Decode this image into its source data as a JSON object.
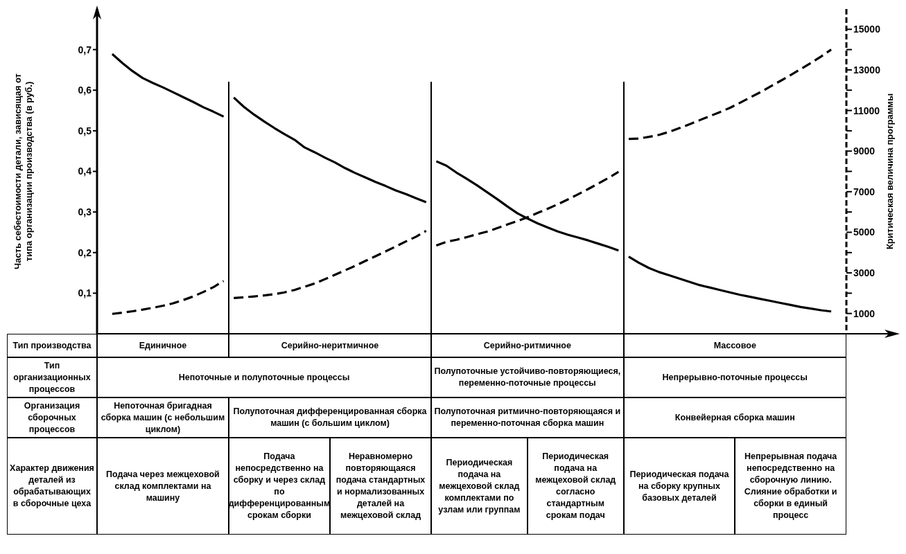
{
  "chart_data": {
    "type": "line",
    "ylabel": "Часть себестоимости детали, зависящая от типа организации производства (в руб.)",
    "y2label": "Критическая величина программы",
    "categories": [
      null,
      null,
      null,
      null,
      null,
      null,
      null,
      null,
      null,
      null,
      null,
      null,
      null,
      null,
      null,
      null,
      null,
      null,
      null,
      null,
      null,
      null,
      null,
      null,
      null,
      null,
      null,
      null,
      null,
      null,
      null,
      null,
      null,
      null,
      null,
      null,
      null,
      null,
      null,
      null,
      null,
      null,
      null,
      null,
      null,
      null,
      null,
      null,
      null,
      null,
      null,
      null,
      null,
      null,
      null,
      null,
      null,
      null,
      null,
      null,
      null,
      null,
      null,
      null,
      null,
      null,
      null,
      null,
      null,
      null,
      null,
      null,
      null,
      null
    ],
    "tick_labels": "y",
    "ylim": [
      0,
      0.8
    ],
    "yticks": [
      {
        "value": 0.1,
        "label": "0,1"
      },
      {
        "value": 0.2,
        "label": "0,2"
      },
      {
        "value": 0.3,
        "label": "0,3"
      },
      {
        "value": 0.4,
        "label": "0,4"
      },
      {
        "value": 0.5,
        "label": "0,5"
      },
      {
        "value": 0.6,
        "label": "0,6"
      },
      {
        "value": 0.7,
        "label": "0,7"
      }
    ],
    "y2lim": [
      0,
      16000
    ],
    "y2ticks": [
      1000,
      {
        "value": 2000,
        "label": null
      },
      3000,
      {
        "value": 4000,
        "label": null
      },
      5000,
      {
        "value": 6000,
        "label": null
      },
      7000,
      {
        "value": 8000,
        "label": null
      },
      9000,
      {
        "value": 10000,
        "label": null
      },
      11000,
      {
        "value": 12000,
        "label": null
      },
      13000,
      {
        "value": 14000,
        "label": null
      },
      15000
    ],
    "marker": "none",
    "series": [
      {
        "color": "#000000",
        "line_style": "solid",
        "values": [
          null,
          0.689,
          0.667,
          0.647,
          0.63,
          0.618,
          0.607,
          0.595,
          0.583,
          0.571,
          0.558,
          0.547,
          0.535,
          null,
          null,
          null,
          null,
          null,
          null,
          null,
          null,
          null,
          null,
          null,
          null,
          null,
          null,
          null,
          null,
          null,
          null,
          null,
          null,
          null,
          null,
          null,
          null,
          null,
          null,
          null,
          null,
          null,
          null,
          null,
          null,
          null,
          null,
          null,
          null,
          null,
          null,
          null,
          null,
          null,
          null,
          null,
          null,
          null,
          null,
          null,
          null,
          null,
          null,
          null,
          null,
          null,
          null,
          null,
          null,
          null,
          null,
          null,
          null,
          null
        ]
      },
      {
        "color": "#000000",
        "line_style": "solid",
        "values": [
          null,
          null,
          null,
          null,
          null,
          null,
          null,
          null,
          null,
          null,
          null,
          null,
          null,
          0.582,
          0.559,
          0.54,
          0.523,
          0.507,
          0.492,
          0.478,
          0.459,
          0.447,
          0.434,
          0.422,
          0.408,
          0.396,
          0.385,
          0.374,
          0.364,
          0.353,
          0.344,
          0.334,
          0.324,
          null,
          null,
          null,
          null,
          null,
          null,
          null,
          null,
          null,
          null,
          null,
          null,
          null,
          null,
          null,
          null,
          null,
          null,
          null,
          null,
          null,
          null,
          null,
          null,
          null,
          null,
          null,
          null,
          null,
          null,
          null,
          null,
          null,
          null,
          null,
          null,
          null,
          null,
          null,
          null,
          null
        ]
      },
      {
        "color": "#000000",
        "line_style": "solid",
        "values": [
          null,
          null,
          null,
          null,
          null,
          null,
          null,
          null,
          null,
          null,
          null,
          null,
          null,
          null,
          null,
          null,
          null,
          null,
          null,
          null,
          null,
          null,
          null,
          null,
          null,
          null,
          null,
          null,
          null,
          null,
          null,
          null,
          null,
          0.425,
          0.414,
          0.397,
          0.382,
          0.366,
          0.349,
          0.332,
          0.314,
          0.297,
          0.284,
          0.272,
          0.262,
          0.252,
          0.244,
          0.237,
          0.23,
          0.222,
          0.214,
          0.205,
          null,
          null,
          null,
          null,
          null,
          null,
          null,
          null,
          null,
          null,
          null,
          null,
          null,
          null,
          null,
          null,
          null,
          null,
          null,
          null,
          null,
          null
        ]
      },
      {
        "color": "#000000",
        "line_style": "solid",
        "values": [
          null,
          null,
          null,
          null,
          null,
          null,
          null,
          null,
          null,
          null,
          null,
          null,
          null,
          null,
          null,
          null,
          null,
          null,
          null,
          null,
          null,
          null,
          null,
          null,
          null,
          null,
          null,
          null,
          null,
          null,
          null,
          null,
          null,
          null,
          null,
          null,
          null,
          null,
          null,
          null,
          null,
          null,
          null,
          null,
          null,
          null,
          null,
          null,
          null,
          null,
          null,
          null,
          0.19,
          0.175,
          0.162,
          0.152,
          0.144,
          0.136,
          0.128,
          0.12,
          0.114,
          0.108,
          0.102,
          0.096,
          0.091,
          0.086,
          0.081,
          0.076,
          0.071,
          0.066,
          0.062,
          0.058,
          0.055,
          null
        ]
      },
      {
        "color": "#000000",
        "line_style": "dashed",
        "axis": "y2",
        "values": [
          null,
          980,
          1040,
          1110,
          1190,
          1280,
          1380,
          1500,
          1660,
          1840,
          2060,
          2300,
          2600,
          null,
          null,
          null,
          null,
          null,
          null,
          null,
          null,
          null,
          null,
          null,
          null,
          null,
          null,
          null,
          null,
          null,
          null,
          null,
          null,
          null,
          null,
          null,
          null,
          null,
          null,
          null,
          null,
          null,
          null,
          null,
          null,
          null,
          null,
          null,
          null,
          null,
          null,
          null,
          null,
          null,
          null,
          null,
          null,
          null,
          null,
          null,
          null,
          null,
          null,
          null,
          null,
          null,
          null,
          null,
          null,
          null,
          null,
          null,
          null,
          null
        ]
      },
      {
        "color": "#000000",
        "line_style": "dashed",
        "axis": "y2",
        "values": [
          null,
          null,
          null,
          null,
          null,
          null,
          null,
          null,
          null,
          null,
          null,
          null,
          null,
          1760,
          1800,
          1840,
          1890,
          1950,
          2040,
          2160,
          2320,
          2480,
          2690,
          2910,
          3130,
          3350,
          3590,
          3820,
          4060,
          4300,
          4550,
          4780,
          5070,
          null,
          null,
          null,
          null,
          null,
          null,
          null,
          null,
          null,
          null,
          null,
          null,
          null,
          null,
          null,
          null,
          null,
          null,
          null,
          null,
          null,
          null,
          null,
          null,
          null,
          null,
          null,
          null,
          null,
          null,
          null,
          null,
          null,
          null,
          null,
          null,
          null,
          null,
          null,
          null,
          null
        ]
      },
      {
        "color": "#000000",
        "line_style": "dashed",
        "axis": "y2",
        "values": [
          null,
          null,
          null,
          null,
          null,
          null,
          null,
          null,
          null,
          null,
          null,
          null,
          null,
          null,
          null,
          null,
          null,
          null,
          null,
          null,
          null,
          null,
          null,
          null,
          null,
          null,
          null,
          null,
          null,
          null,
          null,
          null,
          null,
          4350,
          4530,
          4630,
          4760,
          4900,
          5030,
          5200,
          5380,
          5550,
          5740,
          5950,
          6160,
          6380,
          6620,
          6870,
          7130,
          7400,
          7680,
          7980,
          null,
          null,
          null,
          null,
          null,
          null,
          null,
          null,
          null,
          null,
          null,
          null,
          null,
          null,
          null,
          null,
          null,
          null,
          null,
          null,
          null,
          null
        ]
      },
      {
        "color": "#000000",
        "line_style": "dashed",
        "axis": "y2",
        "values": [
          null,
          null,
          null,
          null,
          null,
          null,
          null,
          null,
          null,
          null,
          null,
          null,
          null,
          null,
          null,
          null,
          null,
          null,
          null,
          null,
          null,
          null,
          null,
          null,
          null,
          null,
          null,
          null,
          null,
          null,
          null,
          null,
          null,
          null,
          null,
          null,
          null,
          null,
          null,
          null,
          null,
          null,
          null,
          null,
          null,
          null,
          null,
          null,
          null,
          null,
          null,
          null,
          9600,
          9620,
          9700,
          9800,
          9950,
          10130,
          10320,
          10520,
          10720,
          10920,
          11130,
          11380,
          11640,
          11900,
          12180,
          12460,
          12750,
          13040,
          13340,
          13660,
          14000,
          null
        ]
      }
    ],
    "annotations": [
      "Тип производства",
      "Единичное",
      "Серийно-неритмичное",
      "Серийно-ритмичное",
      "Массовое",
      "Тип организационных процессов",
      "Непоточные и полупоточные процессы",
      "Полупоточные устойчиво-повторяющиеся, переменно-поточные процессы",
      "Непрерывно-поточные процессы",
      "Организация сборочных процессов",
      "Непоточная бригадная сборка машин (с небольшим циклом)",
      "Полупоточная дифференцированная сборка машин (с большим циклом)",
      "Полупоточная ритмично-повторяющаяся и переменно-поточная сборка машин",
      "Конвейерная сборка машин",
      "Характер движения деталей из обрабатывающих в сборочные цеха",
      "Подача через межцеховой склад комплектами на машину",
      "Подача непосредственно на сборку и через склад по дифференцированным срокам сборки",
      "Неравномерно повторяющаяся подача стандартных и нормализованных деталей на межцеховой склад",
      "Периодическая подача на межцеховой склад комплектами по узлам или группам",
      "Периодическая подача на межцеховой склад согласно стандартным срокам подач",
      "Периодическая подача на сборку крупных базовых деталей",
      "Непрерывная подача непосредственно на сборочную линию. Слияние обработки и сборки в единый процесс"
    ]
  }
}
